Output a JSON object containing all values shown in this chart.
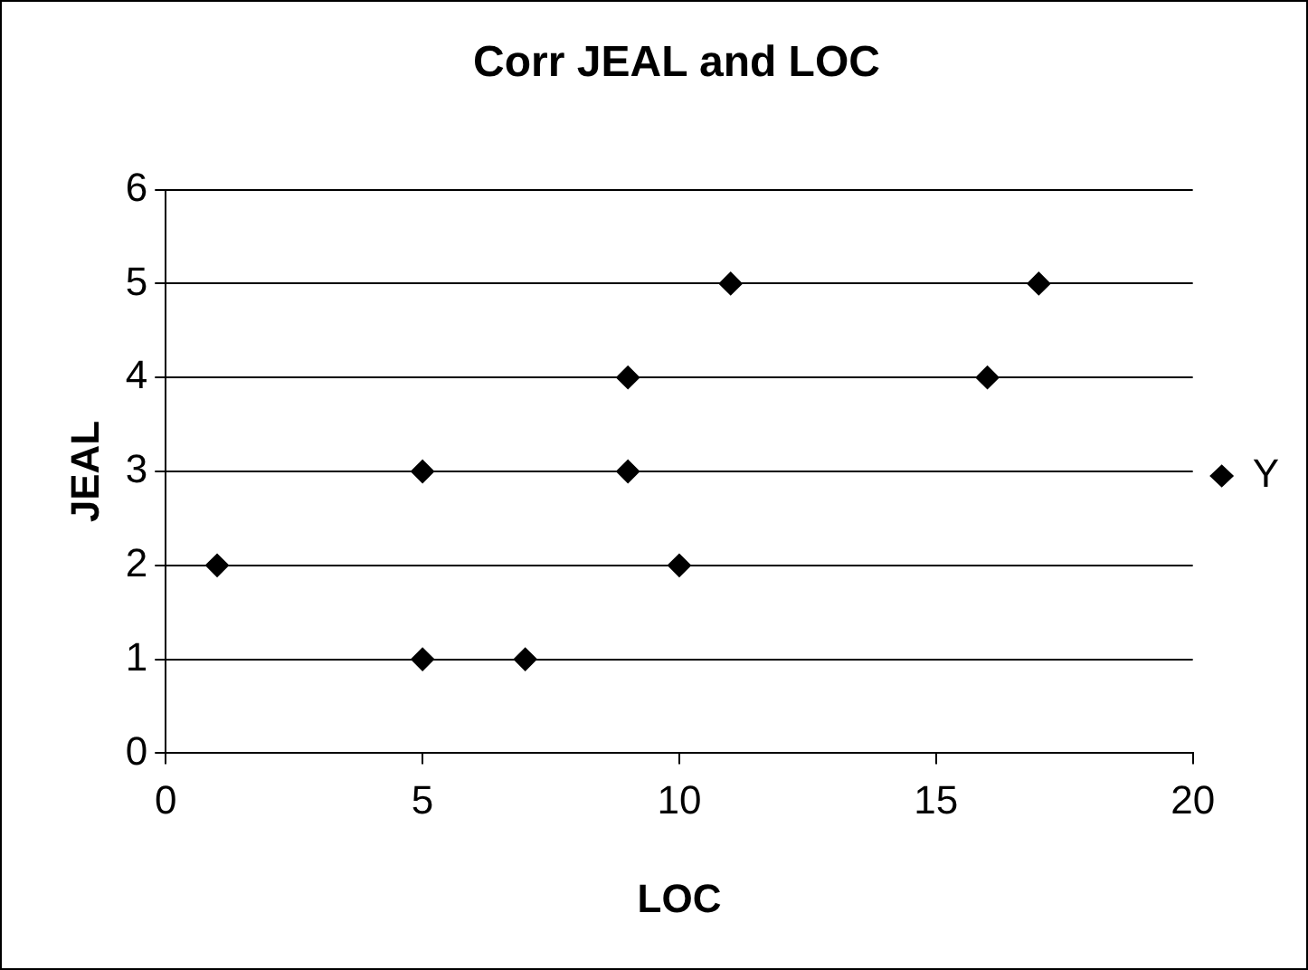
{
  "chart_data": {
    "type": "scatter",
    "title": "Corr JEAL and LOC",
    "xlabel": "LOC",
    "ylabel": "JEAL",
    "x": [
      1,
      5,
      5,
      7,
      9,
      9,
      10,
      11,
      16,
      17
    ],
    "series": [
      {
        "name": "Y",
        "color": "#000000",
        "values": [
          2,
          3,
          1,
          1,
          4,
          3,
          2,
          5,
          4,
          5
        ]
      }
    ],
    "xlim": [
      0,
      20
    ],
    "xticks": [
      0,
      5,
      10,
      15,
      20
    ],
    "ylim": [
      0,
      6
    ],
    "yticks": [
      0,
      1,
      2,
      3,
      4,
      5,
      6
    ],
    "grid": "y",
    "legend": "right",
    "marker": "diamond"
  }
}
